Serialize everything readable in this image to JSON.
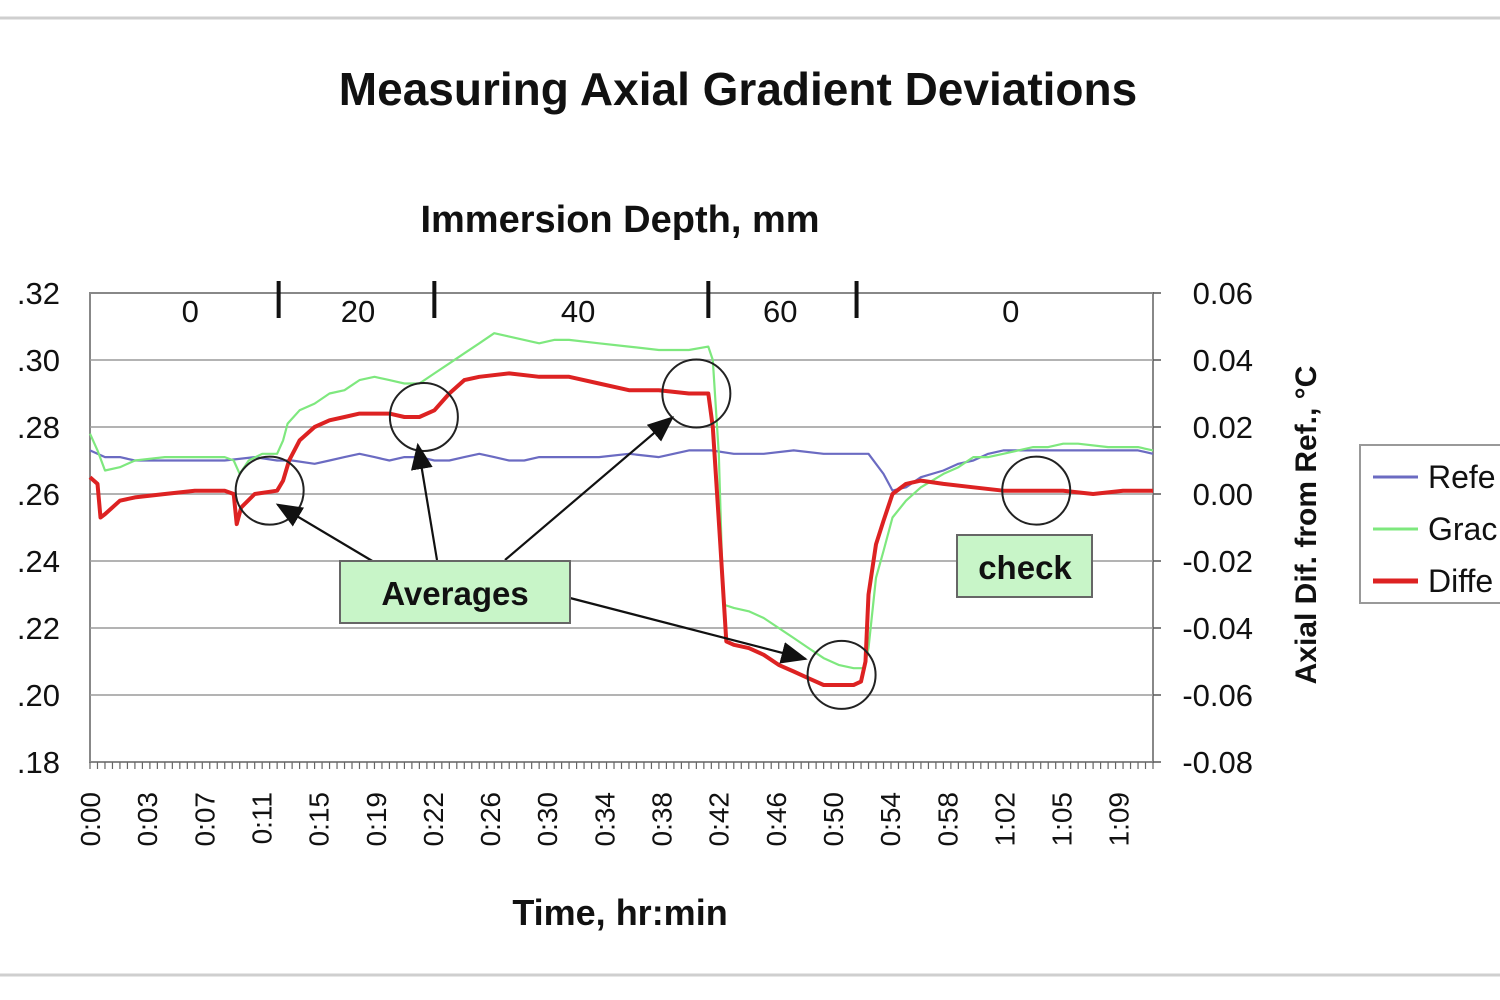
{
  "chart_data": {
    "type": "line",
    "title": "Measuring Axial Gradient Deviations",
    "subtitle": "Immersion Depth, mm",
    "xlabel": "Time, hr:min",
    "y2label": "Axial Dif. from Ref., °C",
    "x_range_minutes": [
      0,
      71
    ],
    "x_ticks": [
      "0:00",
      "0:03",
      "0:07",
      "0:11",
      "0:15",
      "0:19",
      "0:22",
      "0:26",
      "0:30",
      "0:34",
      "0:38",
      "0:42",
      "0:46",
      "0:50",
      "0:54",
      "0:58",
      "1:02",
      "1:05",
      "1:09"
    ],
    "y_left": {
      "ylim": [
        0.18,
        0.32
      ],
      "ticks": [
        ".32",
        ".30",
        ".28",
        ".26",
        ".24",
        ".22",
        ".20",
        ".18"
      ]
    },
    "y_right": {
      "ylim": [
        -0.08,
        0.06
      ],
      "ticks": [
        "0.06",
        "0.04",
        "0.02",
        "0.00",
        "-0.02",
        "-0.04",
        "-0.06",
        "-0.08"
      ]
    },
    "grid": "horizontal",
    "legend_position": "right",
    "immersion_depth": {
      "labels": [
        {
          "text": "0",
          "at_minute": 6.7
        },
        {
          "text": "20",
          "at_minute": 17.9
        },
        {
          "text": "40",
          "at_minute": 32.6
        },
        {
          "text": "60",
          "at_minute": 46.1
        },
        {
          "text": "0",
          "at_minute": 61.5
        }
      ],
      "markers_minute": [
        12.6,
        23.0,
        41.3,
        51.2
      ]
    },
    "series": [
      {
        "name": "Refe",
        "axis": "left",
        "color": "#6b6bc2",
        "points": [
          [
            0,
            0.273
          ],
          [
            1,
            0.271
          ],
          [
            2,
            0.271
          ],
          [
            3,
            0.27
          ],
          [
            5,
            0.27
          ],
          [
            7,
            0.27
          ],
          [
            9,
            0.27
          ],
          [
            11,
            0.271
          ],
          [
            12.5,
            0.27
          ],
          [
            13.5,
            0.27
          ],
          [
            15,
            0.269
          ],
          [
            16,
            0.27
          ],
          [
            17,
            0.271
          ],
          [
            18,
            0.272
          ],
          [
            19,
            0.271
          ],
          [
            20,
            0.27
          ],
          [
            21,
            0.271
          ],
          [
            22,
            0.271
          ],
          [
            23,
            0.27
          ],
          [
            24,
            0.27
          ],
          [
            25,
            0.271
          ],
          [
            26,
            0.272
          ],
          [
            27,
            0.271
          ],
          [
            28,
            0.27
          ],
          [
            29,
            0.27
          ],
          [
            30,
            0.271
          ],
          [
            31,
            0.271
          ],
          [
            32,
            0.271
          ],
          [
            34,
            0.271
          ],
          [
            36,
            0.272
          ],
          [
            38,
            0.271
          ],
          [
            40,
            0.273
          ],
          [
            41.5,
            0.273
          ],
          [
            43,
            0.272
          ],
          [
            45,
            0.272
          ],
          [
            47,
            0.273
          ],
          [
            49,
            0.272
          ],
          [
            51,
            0.272
          ],
          [
            52,
            0.272
          ],
          [
            53,
            0.266
          ],
          [
            53.6,
            0.261
          ],
          [
            54.5,
            0.262
          ],
          [
            55.5,
            0.265
          ],
          [
            57,
            0.267
          ],
          [
            58,
            0.269
          ],
          [
            59,
            0.27
          ],
          [
            60,
            0.272
          ],
          [
            61,
            0.273
          ],
          [
            62,
            0.273
          ],
          [
            64,
            0.273
          ],
          [
            66,
            0.273
          ],
          [
            68,
            0.273
          ],
          [
            70,
            0.273
          ],
          [
            71,
            0.272
          ]
        ]
      },
      {
        "name": "Grac",
        "axis": "left",
        "color": "#7ee87e",
        "points": [
          [
            0,
            0.278
          ],
          [
            0.5,
            0.273
          ],
          [
            1,
            0.267
          ],
          [
            2,
            0.268
          ],
          [
            3,
            0.27
          ],
          [
            5,
            0.271
          ],
          [
            7,
            0.271
          ],
          [
            9,
            0.271
          ],
          [
            9.6,
            0.27
          ],
          [
            10,
            0.266
          ],
          [
            10.6,
            0.27
          ],
          [
            11.5,
            0.272
          ],
          [
            12.5,
            0.272
          ],
          [
            12.9,
            0.276
          ],
          [
            13.2,
            0.281
          ],
          [
            14,
            0.285
          ],
          [
            15,
            0.287
          ],
          [
            16,
            0.29
          ],
          [
            17,
            0.291
          ],
          [
            18,
            0.294
          ],
          [
            19,
            0.295
          ],
          [
            20,
            0.294
          ],
          [
            21,
            0.293
          ],
          [
            22,
            0.293
          ],
          [
            23,
            0.296
          ],
          [
            24,
            0.299
          ],
          [
            25,
            0.302
          ],
          [
            26,
            0.305
          ],
          [
            27,
            0.308
          ],
          [
            28,
            0.307
          ],
          [
            29,
            0.306
          ],
          [
            30,
            0.305
          ],
          [
            31,
            0.306
          ],
          [
            32,
            0.306
          ],
          [
            34,
            0.305
          ],
          [
            36,
            0.304
          ],
          [
            38,
            0.303
          ],
          [
            40,
            0.303
          ],
          [
            41.3,
            0.304
          ],
          [
            41.6,
            0.3
          ],
          [
            42,
            0.272
          ],
          [
            42.3,
            0.227
          ],
          [
            43,
            0.226
          ],
          [
            44,
            0.225
          ],
          [
            45,
            0.223
          ],
          [
            46,
            0.22
          ],
          [
            47,
            0.217
          ],
          [
            48,
            0.214
          ],
          [
            49,
            0.211
          ],
          [
            50,
            0.209
          ],
          [
            51,
            0.208
          ],
          [
            51.7,
            0.208
          ],
          [
            52,
            0.214
          ],
          [
            52.5,
            0.235
          ],
          [
            53,
            0.243
          ],
          [
            53.6,
            0.253
          ],
          [
            54.5,
            0.258
          ],
          [
            55.5,
            0.262
          ],
          [
            57,
            0.266
          ],
          [
            58,
            0.268
          ],
          [
            59,
            0.271
          ],
          [
            60,
            0.271
          ],
          [
            61,
            0.272
          ],
          [
            62,
            0.273
          ],
          [
            63,
            0.274
          ],
          [
            64,
            0.274
          ],
          [
            65,
            0.275
          ],
          [
            66,
            0.275
          ],
          [
            68,
            0.274
          ],
          [
            70,
            0.274
          ],
          [
            71,
            0.273
          ]
        ]
      },
      {
        "name": "Diffe",
        "axis": "right",
        "color": "#dd2222",
        "points": [
          [
            0,
            0.005
          ],
          [
            0.5,
            0.003
          ],
          [
            0.7,
            -0.007
          ],
          [
            1,
            -0.006
          ],
          [
            2,
            -0.002
          ],
          [
            3,
            -0.001
          ],
          [
            5,
            0.0
          ],
          [
            7,
            0.001
          ],
          [
            9,
            0.001
          ],
          [
            9.6,
            0.0
          ],
          [
            9.8,
            -0.009
          ],
          [
            10.1,
            -0.004
          ],
          [
            11,
            0.0
          ],
          [
            12.5,
            0.001
          ],
          [
            12.9,
            0.004
          ],
          [
            13.3,
            0.01
          ],
          [
            14,
            0.016
          ],
          [
            15,
            0.02
          ],
          [
            16,
            0.022
          ],
          [
            17,
            0.023
          ],
          [
            18,
            0.024
          ],
          [
            19,
            0.024
          ],
          [
            20,
            0.024
          ],
          [
            21,
            0.023
          ],
          [
            22,
            0.023
          ],
          [
            23,
            0.025
          ],
          [
            24,
            0.03
          ],
          [
            25,
            0.034
          ],
          [
            26,
            0.035
          ],
          [
            28,
            0.036
          ],
          [
            30,
            0.035
          ],
          [
            32,
            0.035
          ],
          [
            34,
            0.033
          ],
          [
            36,
            0.031
          ],
          [
            38,
            0.031
          ],
          [
            40,
            0.03
          ],
          [
            41.3,
            0.03
          ],
          [
            41.6,
            0.02
          ],
          [
            42.1,
            -0.015
          ],
          [
            42.5,
            -0.044
          ],
          [
            43,
            -0.045
          ],
          [
            44,
            -0.046
          ],
          [
            45,
            -0.048
          ],
          [
            46,
            -0.051
          ],
          [
            47,
            -0.053
          ],
          [
            48,
            -0.055
          ],
          [
            49,
            -0.057
          ],
          [
            49.5,
            -0.057
          ],
          [
            50,
            -0.057
          ],
          [
            51,
            -0.057
          ],
          [
            51.5,
            -0.056
          ],
          [
            51.8,
            -0.05
          ],
          [
            52,
            -0.03
          ],
          [
            52.5,
            -0.015
          ],
          [
            53,
            -0.008
          ],
          [
            53.6,
            0.0
          ],
          [
            54.5,
            0.003
          ],
          [
            55.5,
            0.004
          ],
          [
            57,
            0.003
          ],
          [
            59,
            0.002
          ],
          [
            61,
            0.001
          ],
          [
            63,
            0.001
          ],
          [
            65,
            0.001
          ],
          [
            67,
            0.0
          ],
          [
            69,
            0.001
          ],
          [
            71,
            0.001
          ]
        ]
      }
    ],
    "annotations": {
      "averages_label": "Averages",
      "check_label": "check",
      "circles": [
        {
          "at_minute": 12.0,
          "y_right": 0.001
        },
        {
          "at_minute": 22.3,
          "y_right": 0.023
        },
        {
          "at_minute": 40.5,
          "y_right": 0.03
        },
        {
          "at_minute": 50.2,
          "y_right": -0.054
        },
        {
          "at_minute": 63.2,
          "y_right": 0.001
        }
      ]
    }
  }
}
